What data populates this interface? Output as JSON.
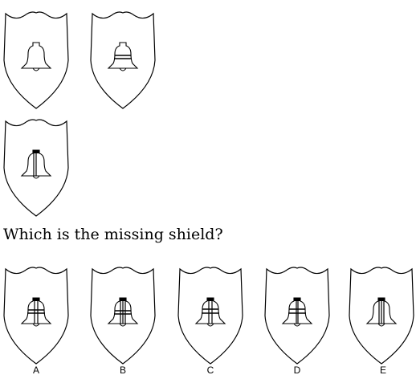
{
  "colors": {
    "stroke": "#000000",
    "fill": "#ffffff",
    "background": "#ffffff"
  },
  "puzzle": {
    "sequence": [
      {
        "id": "shield-1",
        "bell": "plain"
      },
      {
        "id": "shield-2",
        "bell": "two-horizontal-stripes"
      },
      {
        "id": "shield-3",
        "bell": "top-cap-left-vertical-stripe"
      }
    ],
    "question": "Which is the missing shield?",
    "options": [
      {
        "label": "A",
        "bell": "cap-vertical-and-two-horizontal-stripes"
      },
      {
        "label": "B",
        "bell": "cap-two-vertical-two-horizontal-stripes"
      },
      {
        "label": "C",
        "bell": "cap-vertical-and-horizontal-stripes"
      },
      {
        "label": "D",
        "bell": "cap-vertical-and-horizontal-stripes"
      },
      {
        "label": "E",
        "bell": "cap-two-vertical-stripes"
      }
    ]
  }
}
